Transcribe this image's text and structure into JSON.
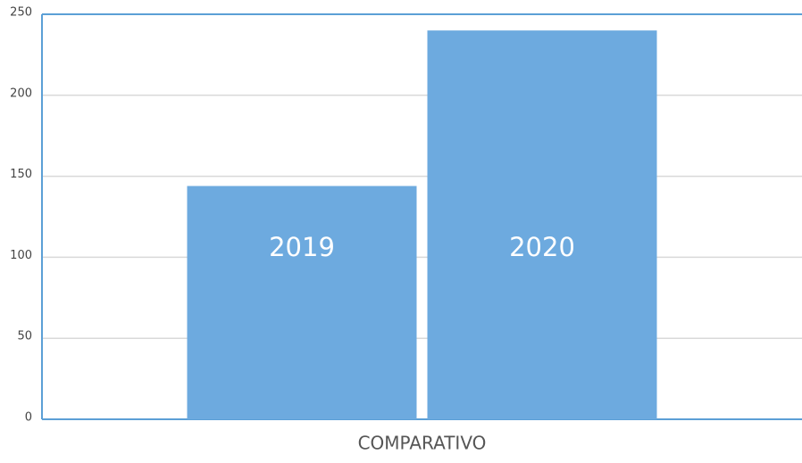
{
  "chart_data": {
    "type": "bar",
    "categories": [
      "COMPARATIVO"
    ],
    "series": [
      {
        "name": "2019",
        "color": "#6daadf",
        "values": [
          144
        ]
      },
      {
        "name": "2020",
        "color": "#6daadf",
        "values": [
          240
        ]
      }
    ],
    "ylim": [
      0,
      250
    ],
    "yticks": [
      0,
      50,
      100,
      150,
      200,
      250
    ],
    "grid": true
  }
}
